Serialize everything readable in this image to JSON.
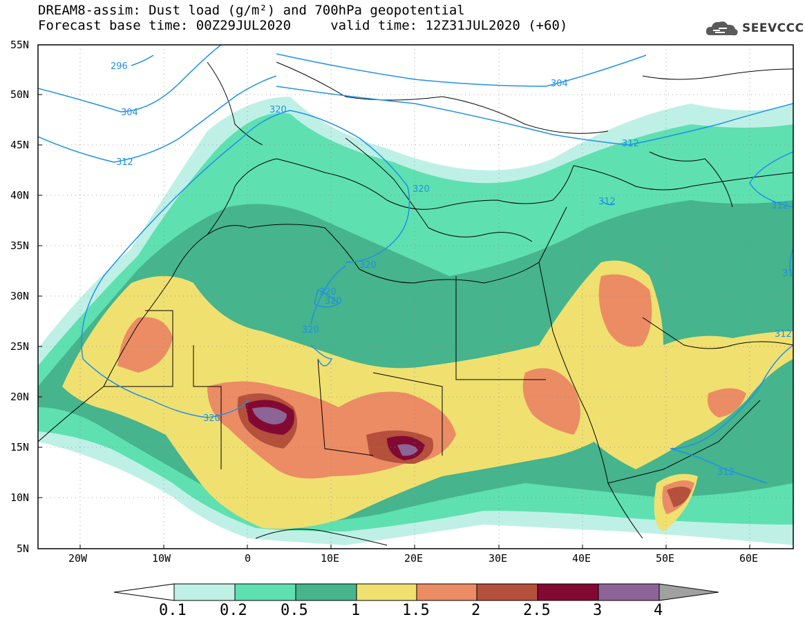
{
  "title_line1": "DREAM8-assim: Dust load (g/m²) and 700hPa geopotential",
  "title_line2": "Forecast base time: 00Z29JUL2020     valid time: 12Z31JUL2020 (+60)",
  "logo_text": "SEEVCCC",
  "lat_labels": [
    "55N",
    "50N",
    "45N",
    "40N",
    "35N",
    "30N",
    "25N",
    "20N",
    "15N",
    "10N",
    "5N"
  ],
  "lon_labels": [
    "20W",
    "10W",
    "0",
    "10E",
    "20E",
    "30E",
    "40E",
    "50E",
    "60E"
  ],
  "colorbar": {
    "labels": [
      "0.1",
      "0.2",
      "0.5",
      "1",
      "1.5",
      "2",
      "2.5",
      "3",
      "4"
    ],
    "colors": [
      "#bff0e6",
      "#5fe0b0",
      "#46b48c",
      "#f0e070",
      "#eb8c64",
      "#b4503c",
      "#820a32",
      "#8c6496",
      "#a0a0a0"
    ]
  },
  "contour_labels": [
    {
      "text": "296"
    },
    {
      "text": "304"
    },
    {
      "text": "312"
    },
    {
      "text": "320"
    },
    {
      "text": "304"
    },
    {
      "text": "312"
    },
    {
      "text": "320"
    },
    {
      "text": "312"
    },
    {
      "text": "312"
    },
    {
      "text": "320"
    },
    {
      "text": "320"
    },
    {
      "text": "320"
    },
    {
      "text": "320"
    },
    {
      "text": "320"
    },
    {
      "text": "312"
    },
    {
      "text": "312"
    },
    {
      "text": "31"
    }
  ]
}
